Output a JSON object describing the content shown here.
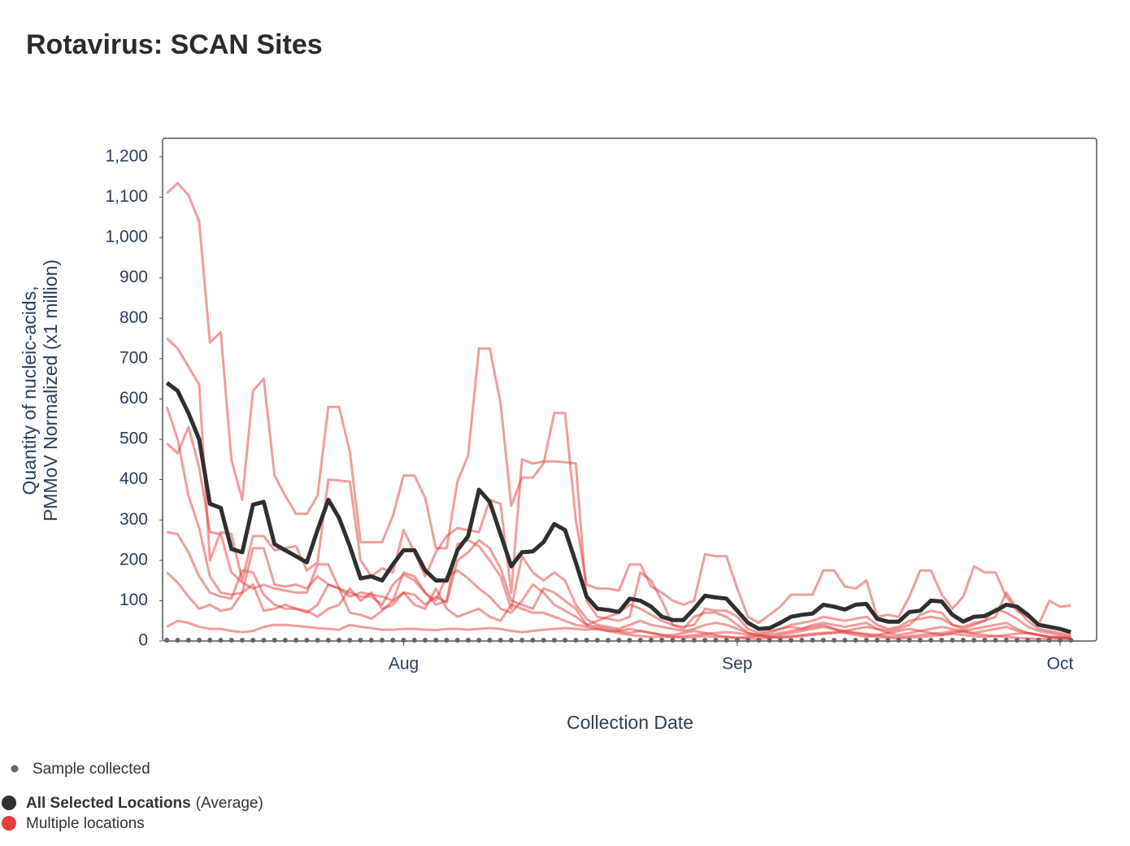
{
  "chart_data": {
    "type": "line",
    "title": "Rotavirus: SCAN Sites",
    "x_label": "Collection Date",
    "y_label": [
      "Quantity of nucleic-acids,",
      "PMMoV Normalized (x1 million)"
    ],
    "xlim": [
      -22.4,
      64.4
    ],
    "xticks": [
      {
        "value": 0,
        "label": "Aug"
      },
      {
        "value": 31,
        "label": "Sep"
      },
      {
        "value": 61,
        "label": "Oct"
      }
    ],
    "ylim": [
      0,
      1246
    ],
    "yticks": [
      0,
      100,
      200,
      300,
      400,
      500,
      600,
      700,
      800,
      900,
      {
        "value": 1000,
        "label": "1,000"
      },
      {
        "value": 1100,
        "label": "1,100"
      },
      {
        "value": 1200,
        "label": "1,200"
      }
    ],
    "x": [
      -22,
      -21,
      -20,
      -19,
      -18,
      -17,
      -16,
      -15,
      -14,
      -13,
      -12,
      -11,
      -10,
      -9,
      -8,
      -7,
      -6,
      -5,
      -4,
      -3,
      -2,
      -1,
      0,
      1,
      2,
      3,
      4,
      5,
      6,
      7,
      8,
      9,
      10,
      11,
      12,
      13,
      14,
      15,
      16,
      17,
      18,
      19,
      20,
      21,
      22,
      23,
      24,
      25,
      26,
      27,
      28,
      29,
      30,
      31,
      32,
      33,
      34,
      35,
      36,
      37,
      38,
      39,
      40,
      41,
      42,
      43,
      44,
      45,
      46,
      47,
      48,
      49,
      50,
      51,
      52,
      53,
      54,
      55,
      56,
      57,
      58,
      59,
      60,
      61,
      62
    ],
    "series": [
      {
        "name": "Sample collected",
        "color": "#666666",
        "marker": "dot",
        "values": [
          0,
          0,
          0,
          0,
          0,
          0,
          0,
          0,
          0,
          0,
          0,
          0,
          0,
          0,
          0,
          0,
          0,
          0,
          0,
          0,
          0,
          0,
          0,
          0,
          0,
          0,
          0,
          0,
          0,
          0,
          0,
          0,
          0,
          0,
          0,
          0,
          0,
          0,
          0,
          0,
          0,
          0,
          0,
          0,
          0,
          0,
          0,
          0,
          0,
          0,
          0,
          0,
          0,
          0,
          0,
          0,
          0,
          0,
          0,
          0,
          0,
          0,
          0,
          0,
          0,
          0,
          0,
          0,
          0,
          0,
          0,
          0,
          0,
          0,
          0,
          0,
          0,
          0,
          0,
          0,
          0,
          0,
          0,
          0,
          0
        ]
      },
      {
        "name": "Multiple locations",
        "color": "#e23c3c",
        "marker": "lines",
        "lines": [
          [
            1110,
            1135,
            1105,
            1040,
            740,
            765,
            450,
            350,
            620,
            650,
            410,
            360,
            315,
            315,
            360,
            580,
            580,
            470,
            245,
            245,
            245,
            310,
            410,
            410,
            355,
            230,
            230,
            395,
            460,
            725,
            725,
            590,
            335,
            405,
            405,
            440,
            565,
            565,
            300,
            140,
            130,
            130,
            125,
            190,
            190,
            135,
            120,
            100,
            90,
            100,
            215,
            210,
            210,
            130,
            60,
            45,
            65,
            85,
            115,
            115,
            115,
            175,
            175,
            135,
            130,
            150,
            60,
            65,
            60,
            110,
            175,
            175,
            115,
            80,
            110,
            185,
            170,
            170,
            110,
            75,
            60,
            40,
            100,
            85,
            88
          ],
          [
            750,
            725,
            680,
            635,
            200,
            270,
            265,
            150,
            260,
            260,
            225,
            230,
            235,
            175,
            195,
            400,
            398,
            395,
            200,
            160,
            180,
            170,
            275,
            220,
            160,
            220,
            260,
            280,
            275,
            270,
            350,
            340,
            120,
            450,
            440,
            445,
            445,
            443,
            440,
            100,
            60,
            55,
            50,
            60,
            170,
            150,
            100,
            40,
            35,
            40,
            80,
            75,
            75,
            60,
            30,
            20,
            25,
            30,
            40,
            45,
            50,
            60,
            55,
            50,
            55,
            60,
            40,
            30,
            35,
            50,
            55,
            60,
            55,
            40,
            35,
            45,
            50,
            60,
            120,
            80,
            50,
            30,
            25,
            20,
            15
          ],
          [
            490,
            465,
            530,
            430,
            270,
            265,
            170,
            145,
            130,
            140,
            130,
            125,
            120,
            120,
            190,
            190,
            130,
            110,
            120,
            115,
            110,
            100,
            120,
            115,
            90,
            110,
            95,
            200,
            220,
            250,
            230,
            180,
            100,
            90,
            80,
            130,
            120,
            100,
            80,
            40,
            50,
            60,
            70,
            90,
            80,
            65,
            50,
            40,
            30,
            60,
            70,
            70,
            60,
            40,
            20,
            15,
            20,
            30,
            35,
            30,
            40,
            45,
            40,
            35,
            40,
            45,
            30,
            25,
            30,
            40,
            65,
            75,
            70,
            40,
            30,
            40,
            50,
            80,
            70,
            55,
            35,
            25,
            20,
            15,
            10
          ],
          [
            580,
            500,
            360,
            280,
            160,
            120,
            115,
            120,
            230,
            230,
            140,
            135,
            140,
            130,
            160,
            140,
            130,
            70,
            65,
            55,
            75,
            100,
            170,
            160,
            120,
            90,
            100,
            240,
            250,
            235,
            200,
            160,
            80,
            210,
            170,
            150,
            170,
            150,
            90,
            55,
            40,
            35,
            30,
            40,
            50,
            40,
            35,
            30,
            25,
            30,
            40,
            45,
            40,
            30,
            20,
            15,
            10,
            15,
            20,
            25,
            30,
            35,
            30,
            25,
            30,
            35,
            30,
            20,
            15,
            20,
            25,
            30,
            35,
            30,
            25,
            20,
            25,
            30,
            35,
            25,
            20,
            15,
            10,
            10,
            8
          ],
          [
            270,
            265,
            220,
            160,
            120,
            110,
            105,
            175,
            170,
            115,
            90,
            80,
            80,
            70,
            90,
            140,
            130,
            120,
            110,
            110,
            90,
            140,
            165,
            150,
            120,
            100,
            160,
            175,
            155,
            130,
            110,
            80,
            70,
            100,
            140,
            120,
            90,
            75,
            60,
            40,
            35,
            30,
            25,
            30,
            25,
            20,
            15,
            15,
            20,
            25,
            20,
            15,
            10,
            8,
            10,
            12,
            15,
            20,
            25,
            30,
            35,
            40,
            30,
            20,
            15,
            10,
            15,
            20,
            25,
            30,
            25,
            20,
            15,
            20,
            25,
            30,
            35,
            40,
            45,
            30,
            20,
            15,
            10,
            8,
            6
          ],
          [
            170,
            145,
            110,
            80,
            90,
            75,
            80,
            120,
            140,
            75,
            80,
            90,
            80,
            75,
            60,
            80,
            90,
            130,
            100,
            120,
            80,
            90,
            120,
            90,
            80,
            130,
            80,
            60,
            70,
            80,
            60,
            50,
            90,
            80,
            70,
            70,
            60,
            50,
            40,
            35,
            30,
            25,
            25,
            20,
            25,
            20,
            15,
            10,
            8,
            10,
            12,
            10,
            10,
            8,
            6,
            5,
            8,
            10,
            12,
            15,
            18,
            20,
            22,
            25,
            20,
            15,
            10,
            8,
            6,
            8,
            10,
            12,
            15,
            18,
            15,
            12,
            10,
            12,
            15,
            18,
            20,
            15,
            10,
            8,
            6
          ],
          [
            35,
            50,
            45,
            35,
            30,
            30,
            25,
            22,
            25,
            35,
            40,
            40,
            38,
            35,
            32,
            30,
            28,
            40,
            35,
            32,
            28,
            28,
            30,
            30,
            28,
            27,
            30,
            30,
            28,
            30,
            32,
            30,
            25,
            22,
            25,
            28,
            30,
            32,
            30,
            28,
            30,
            25,
            20,
            15,
            12,
            10,
            10,
            10,
            12,
            15,
            18,
            20,
            22,
            20,
            15,
            12,
            10,
            8,
            10,
            12,
            15,
            18,
            20,
            22,
            20,
            18,
            15,
            12,
            10,
            12,
            15,
            18,
            20,
            25,
            22,
            18,
            15,
            12,
            10,
            8,
            6,
            5,
            5,
            5,
            5
          ]
        ]
      },
      {
        "name": "All Selected Locations",
        "name_suffix": "(Average)",
        "color": "#2f2f2f",
        "marker": "line",
        "values": [
          640,
          620,
          565,
          500,
          340,
          330,
          228,
          220,
          338,
          345,
          240,
          225,
          210,
          195,
          275,
          350,
          305,
          235,
          155,
          160,
          150,
          190,
          225,
          225,
          175,
          150,
          150,
          225,
          260,
          375,
          345,
          265,
          185,
          220,
          222,
          245,
          290,
          275,
          195,
          110,
          80,
          77,
          72,
          105,
          100,
          85,
          60,
          52,
          52,
          80,
          112,
          108,
          105,
          75,
          45,
          30,
          32,
          45,
          60,
          65,
          68,
          90,
          85,
          78,
          90,
          92,
          55,
          48,
          48,
          72,
          75,
          100,
          98,
          65,
          48,
          60,
          62,
          75,
          90,
          85,
          65,
          40,
          35,
          30,
          22
        ]
      }
    ]
  }
}
